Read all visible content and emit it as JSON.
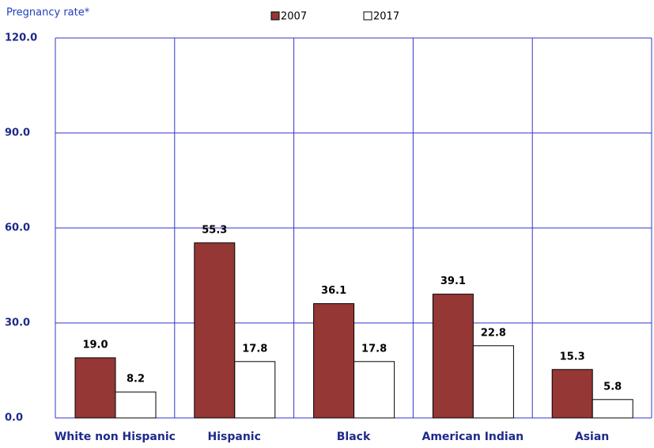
{
  "chart_data": {
    "type": "bar",
    "y_label": "Pregnancy rate*",
    "categories": [
      "White non Hispanic",
      "Hispanic",
      "Black",
      "American Indian",
      "Asian"
    ],
    "series": [
      {
        "name": "2007",
        "color": "#953735",
        "values": [
          19,
          55.3,
          36.1,
          39.1,
          15.3
        ],
        "value_labels": [
          "19.0",
          "55.3",
          "36.1",
          "39.1",
          "15.3"
        ]
      },
      {
        "name": "2017",
        "color": "#ffffff",
        "values": [
          8.2,
          17.8,
          17.8,
          22.8,
          5.8
        ],
        "value_labels": [
          "8.2",
          "17.8",
          "17.8",
          "22.8",
          "5.8"
        ]
      }
    ],
    "ylim": [
      0,
      120
    ],
    "yticks": [
      {
        "value": 0,
        "label": "0.0"
      },
      {
        "value": 30,
        "label": "30.0"
      },
      {
        "value": 60,
        "label": "60.0"
      },
      {
        "value": 90,
        "label": "90.0"
      },
      {
        "value": 120,
        "label": "120.0"
      }
    ],
    "grid": true,
    "grid_color": "#3333cc"
  }
}
